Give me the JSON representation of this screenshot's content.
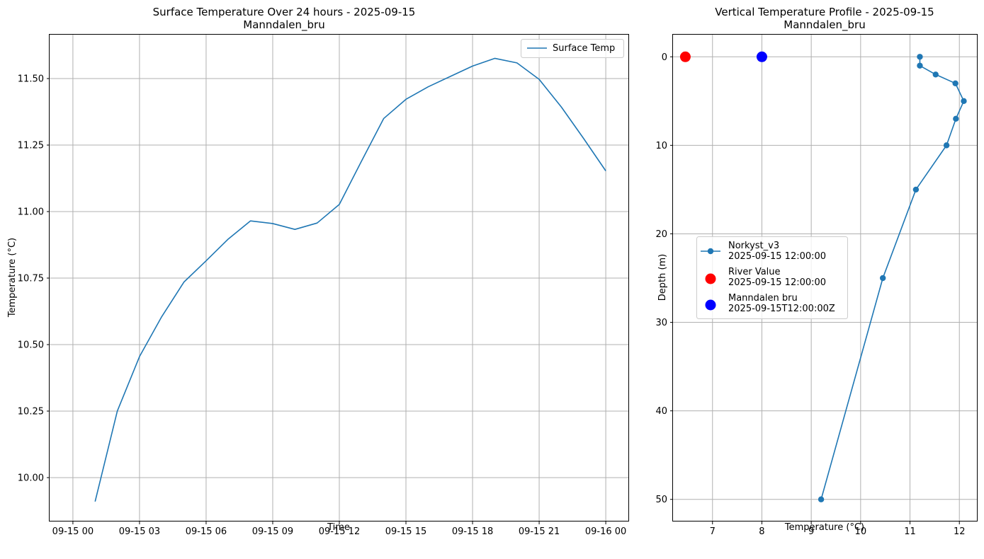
{
  "chart_data": [
    {
      "type": "line",
      "title": "Surface Temperature Over 24 hours - 2025-09-15",
      "subtitle": "Manndalen_bru",
      "xlabel": "Time",
      "ylabel": "Temperature (°C)",
      "x_tick_labels": [
        "09-15 00",
        "09-15 03",
        "09-15 06",
        "09-15 09",
        "09-15 12",
        "09-15 15",
        "09-15 18",
        "09-15 21",
        "09-16 00"
      ],
      "y_tick_labels": [
        "10.00",
        "10.25",
        "10.50",
        "10.75",
        "11.00",
        "11.25",
        "11.50"
      ],
      "xlim_hours": [
        -1.05,
        25.05
      ],
      "ylim": [
        9.835,
        11.665
      ],
      "grid": true,
      "legend_position": "top-right",
      "series": [
        {
          "name": "Surface Temp",
          "color": "#1f77b4",
          "x_hours": [
            1,
            2,
            3,
            4,
            5,
            6,
            7,
            8,
            9,
            10,
            11,
            12,
            13,
            14,
            15,
            16,
            17,
            18,
            19,
            20,
            21,
            22,
            23,
            24
          ],
          "values": [
            9.91,
            10.25,
            10.455,
            10.605,
            10.735,
            10.815,
            10.897,
            10.965,
            10.955,
            10.933,
            10.957,
            11.027,
            11.19,
            11.35,
            11.422,
            11.469,
            11.508,
            11.547,
            11.576,
            11.559,
            11.497,
            11.393,
            11.275,
            11.153
          ]
        }
      ]
    },
    {
      "type": "line",
      "title": "Vertical Temperature Profile - 2025-09-15",
      "subtitle": "Manndalen_bru",
      "xlabel": "Temperature (°C)",
      "ylabel": "Depth (m)",
      "x_tick_labels": [
        "7",
        "8",
        "9",
        "10",
        "11",
        "12"
      ],
      "y_tick_labels": [
        "0",
        "10",
        "20",
        "30",
        "40",
        "50"
      ],
      "xlim": [
        6.2,
        12.37
      ],
      "ylim": [
        -2.5,
        52.5
      ],
      "y_inverted": true,
      "grid": true,
      "legend_position": "center-left",
      "series": [
        {
          "name": "Norkyst_v3\n2025-09-15 12:00:00",
          "color": "#1f77b4",
          "marker": "circle",
          "temperature": [
            11.2,
            11.2,
            11.52,
            11.92,
            12.09,
            11.93,
            11.74,
            11.12,
            10.45,
            9.2
          ],
          "depth": [
            0,
            1,
            2,
            3,
            5,
            7,
            10,
            15,
            25,
            50
          ]
        },
        {
          "name": "River Value\n2025-09-15 12:00:00",
          "color": "#ff0000",
          "marker": "circle-large",
          "temperature": [
            6.45
          ],
          "depth": [
            0
          ]
        },
        {
          "name": "Manndalen bru\n2025-09-15T12:00:00Z",
          "color": "#0000ff",
          "marker": "circle-large",
          "temperature": [
            8.0
          ],
          "depth": [
            0
          ]
        }
      ]
    }
  ]
}
